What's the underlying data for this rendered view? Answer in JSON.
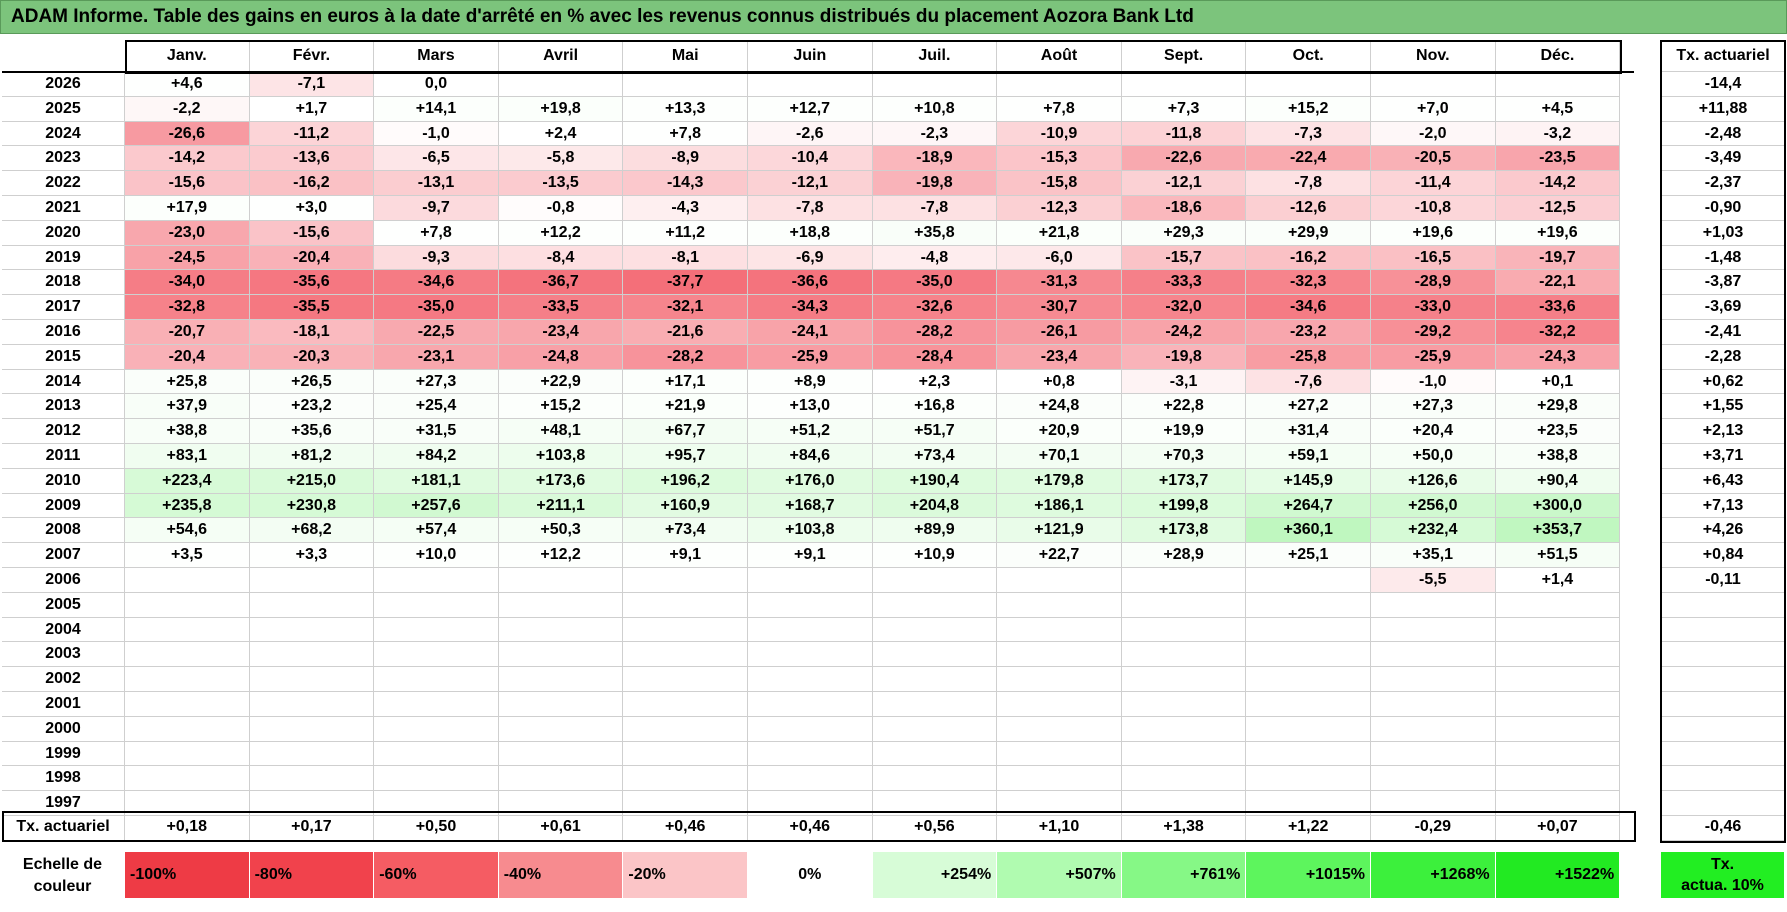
{
  "title": "ADAM Informe. Table des gains en euros à la date d'arrêté en % avec les revenus connus distribués du placement Aozora Bank Ltd",
  "months": [
    "Janv.",
    "Févr.",
    "Mars",
    "Avril",
    "Mai",
    "Juin",
    "Juil.",
    "Août",
    "Sept.",
    "Oct.",
    "Nov.",
    "Déc."
  ],
  "actuarial_header": "Tx. actuariel",
  "rows": [
    {
      "year": "2026",
      "values": [
        "+4,6",
        "-7,1",
        "0,0",
        "",
        "",
        "",
        "",
        "",
        "",
        "",
        "",
        ""
      ],
      "rate": "-14,4"
    },
    {
      "year": "2025",
      "values": [
        "-2,2",
        "+1,7",
        "+14,1",
        "+19,8",
        "+13,3",
        "+12,7",
        "+10,8",
        "+7,8",
        "+7,3",
        "+15,2",
        "+7,0",
        "+4,5"
      ],
      "rate": "+11,88"
    },
    {
      "year": "2024",
      "values": [
        "-26,6",
        "-11,2",
        "-1,0",
        "+2,4",
        "+7,8",
        "-2,6",
        "-2,3",
        "-10,9",
        "-11,8",
        "-7,3",
        "-2,0",
        "-3,2"
      ],
      "rate": "-2,48"
    },
    {
      "year": "2023",
      "values": [
        "-14,2",
        "-13,6",
        "-6,5",
        "-5,8",
        "-8,9",
        "-10,4",
        "-18,9",
        "-15,3",
        "-22,6",
        "-22,4",
        "-20,5",
        "-23,5"
      ],
      "rate": "-3,49"
    },
    {
      "year": "2022",
      "values": [
        "-15,6",
        "-16,2",
        "-13,1",
        "-13,5",
        "-14,3",
        "-12,1",
        "-19,8",
        "-15,8",
        "-12,1",
        "-7,8",
        "-11,4",
        "-14,2"
      ],
      "rate": "-2,37"
    },
    {
      "year": "2021",
      "values": [
        "+17,9",
        "+3,0",
        "-9,7",
        "-0,8",
        "-4,3",
        "-7,8",
        "-7,8",
        "-12,3",
        "-18,6",
        "-12,6",
        "-10,8",
        "-12,5"
      ],
      "rate": "-0,90"
    },
    {
      "year": "2020",
      "values": [
        "-23,0",
        "-15,6",
        "+7,8",
        "+12,2",
        "+11,2",
        "+18,8",
        "+35,8",
        "+21,8",
        "+29,3",
        "+29,9",
        "+19,6",
        "+19,6"
      ],
      "rate": "+1,03"
    },
    {
      "year": "2019",
      "values": [
        "-24,5",
        "-20,4",
        "-9,3",
        "-8,4",
        "-8,1",
        "-6,9",
        "-4,8",
        "-6,0",
        "-15,7",
        "-16,2",
        "-16,5",
        "-19,7"
      ],
      "rate": "-1,48"
    },
    {
      "year": "2018",
      "values": [
        "-34,0",
        "-35,6",
        "-34,6",
        "-36,7",
        "-37,7",
        "-36,6",
        "-35,0",
        "-31,3",
        "-33,3",
        "-32,3",
        "-28,9",
        "-22,1"
      ],
      "rate": "-3,87"
    },
    {
      "year": "2017",
      "values": [
        "-32,8",
        "-35,5",
        "-35,0",
        "-33,5",
        "-32,1",
        "-34,3",
        "-32,6",
        "-30,7",
        "-32,0",
        "-34,6",
        "-33,0",
        "-33,6"
      ],
      "rate": "-3,69"
    },
    {
      "year": "2016",
      "values": [
        "-20,7",
        "-18,1",
        "-22,5",
        "-23,4",
        "-21,6",
        "-24,1",
        "-28,2",
        "-26,1",
        "-24,2",
        "-23,2",
        "-29,2",
        "-32,2"
      ],
      "rate": "-2,41"
    },
    {
      "year": "2015",
      "values": [
        "-20,4",
        "-20,3",
        "-23,1",
        "-24,8",
        "-28,2",
        "-25,9",
        "-28,4",
        "-23,4",
        "-19,8",
        "-25,8",
        "-25,9",
        "-24,3"
      ],
      "rate": "-2,28"
    },
    {
      "year": "2014",
      "values": [
        "+25,8",
        "+26,5",
        "+27,3",
        "+22,9",
        "+17,1",
        "+8,9",
        "+2,3",
        "+0,8",
        "-3,1",
        "-7,6",
        "-1,0",
        "+0,1"
      ],
      "rate": "+0,62"
    },
    {
      "year": "2013",
      "values": [
        "+37,9",
        "+23,2",
        "+25,4",
        "+15,2",
        "+21,9",
        "+13,0",
        "+16,8",
        "+24,8",
        "+22,8",
        "+27,2",
        "+27,3",
        "+29,8"
      ],
      "rate": "+1,55"
    },
    {
      "year": "2012",
      "values": [
        "+38,8",
        "+35,6",
        "+31,5",
        "+48,1",
        "+67,7",
        "+51,2",
        "+51,7",
        "+20,9",
        "+19,9",
        "+31,4",
        "+20,4",
        "+23,5"
      ],
      "rate": "+2,13"
    },
    {
      "year": "2011",
      "values": [
        "+83,1",
        "+81,2",
        "+84,2",
        "+103,8",
        "+95,7",
        "+84,6",
        "+73,4",
        "+70,1",
        "+70,3",
        "+59,1",
        "+50,0",
        "+38,8"
      ],
      "rate": "+3,71"
    },
    {
      "year": "2010",
      "values": [
        "+223,4",
        "+215,0",
        "+181,1",
        "+173,6",
        "+196,2",
        "+176,0",
        "+190,4",
        "+179,8",
        "+173,7",
        "+145,9",
        "+126,6",
        "+90,4"
      ],
      "rate": "+6,43"
    },
    {
      "year": "2009",
      "values": [
        "+235,8",
        "+230,8",
        "+257,6",
        "+211,1",
        "+160,9",
        "+168,7",
        "+204,8",
        "+186,1",
        "+199,8",
        "+264,7",
        "+256,0",
        "+300,0"
      ],
      "rate": "+7,13"
    },
    {
      "year": "2008",
      "values": [
        "+54,6",
        "+68,2",
        "+57,4",
        "+50,3",
        "+73,4",
        "+103,8",
        "+89,9",
        "+121,9",
        "+173,8",
        "+360,1",
        "+232,4",
        "+353,7"
      ],
      "rate": "+4,26"
    },
    {
      "year": "2007",
      "values": [
        "+3,5",
        "+3,3",
        "+10,0",
        "+12,2",
        "+9,1",
        "+9,1",
        "+10,9",
        "+22,7",
        "+28,9",
        "+25,1",
        "+35,1",
        "+51,5"
      ],
      "rate": "+0,84"
    },
    {
      "year": "2006",
      "values": [
        "",
        "",
        "",
        "",
        "",
        "",
        "",
        "",
        "",
        "",
        "-5,5",
        "+1,4"
      ],
      "rate": "-0,11"
    },
    {
      "year": "2005",
      "values": [
        "",
        "",
        "",
        "",
        "",
        "",
        "",
        "",
        "",
        "",
        "",
        ""
      ],
      "rate": ""
    },
    {
      "year": "2004",
      "values": [
        "",
        "",
        "",
        "",
        "",
        "",
        "",
        "",
        "",
        "",
        "",
        ""
      ],
      "rate": ""
    },
    {
      "year": "2003",
      "values": [
        "",
        "",
        "",
        "",
        "",
        "",
        "",
        "",
        "",
        "",
        "",
        ""
      ],
      "rate": ""
    },
    {
      "year": "2002",
      "values": [
        "",
        "",
        "",
        "",
        "",
        "",
        "",
        "",
        "",
        "",
        "",
        ""
      ],
      "rate": ""
    },
    {
      "year": "2001",
      "values": [
        "",
        "",
        "",
        "",
        "",
        "",
        "",
        "",
        "",
        "",
        "",
        ""
      ],
      "rate": ""
    },
    {
      "year": "2000",
      "values": [
        "",
        "",
        "",
        "",
        "",
        "",
        "",
        "",
        "",
        "",
        "",
        ""
      ],
      "rate": ""
    },
    {
      "year": "1999",
      "values": [
        "",
        "",
        "",
        "",
        "",
        "",
        "",
        "",
        "",
        "",
        "",
        ""
      ],
      "rate": ""
    },
    {
      "year": "1998",
      "values": [
        "",
        "",
        "",
        "",
        "",
        "",
        "",
        "",
        "",
        "",
        "",
        ""
      ],
      "rate": ""
    },
    {
      "year": "1997",
      "values": [
        "",
        "",
        "",
        "",
        "",
        "",
        "",
        "",
        "",
        "",
        "",
        ""
      ],
      "rate": ""
    }
  ],
  "footer": {
    "label": "Tx. actuariel",
    "values": [
      "+0,18",
      "+0,17",
      "+0,50",
      "+0,61",
      "+0,46",
      "+0,46",
      "+0,56",
      "+1,10",
      "+1,38",
      "+1,22",
      "-0,29",
      "+0,07"
    ],
    "total": "-0,46"
  },
  "legend": {
    "label_line1": "Echelle de",
    "label_line2": "couleur",
    "steps": [
      {
        "text": "-100%",
        "color": "#ee3b45",
        "align": "left"
      },
      {
        "text": "-80%",
        "color": "#f1424c",
        "align": "left"
      },
      {
        "text": "-60%",
        "color": "#f55c63",
        "align": "left"
      },
      {
        "text": "-40%",
        "color": "#f78b8f",
        "align": "left"
      },
      {
        "text": "-20%",
        "color": "#fbc5c7",
        "align": "left"
      },
      {
        "text": "0%",
        "color": "#ffffff",
        "align": "center"
      },
      {
        "text": "+254%",
        "color": "#d7fcd7",
        "align": "right"
      },
      {
        "text": "+507%",
        "color": "#b0fbb0",
        "align": "right"
      },
      {
        "text": "+761%",
        "color": "#86f886",
        "align": "right"
      },
      {
        "text": "+1015%",
        "color": "#5df55d",
        "align": "right"
      },
      {
        "text": "+1268%",
        "color": "#3cf03c",
        "align": "right"
      },
      {
        "text": "+1522%",
        "color": "#22ea22",
        "align": "right"
      }
    ],
    "actuarial_line1": "Tx.",
    "actuarial_line2": "actua. 10%",
    "actuarial_color": "#22ee22"
  },
  "colors": {
    "title_bg": "#7cc47c",
    "neg_max": "#f46e78",
    "pos_max": "#bff7bf"
  }
}
